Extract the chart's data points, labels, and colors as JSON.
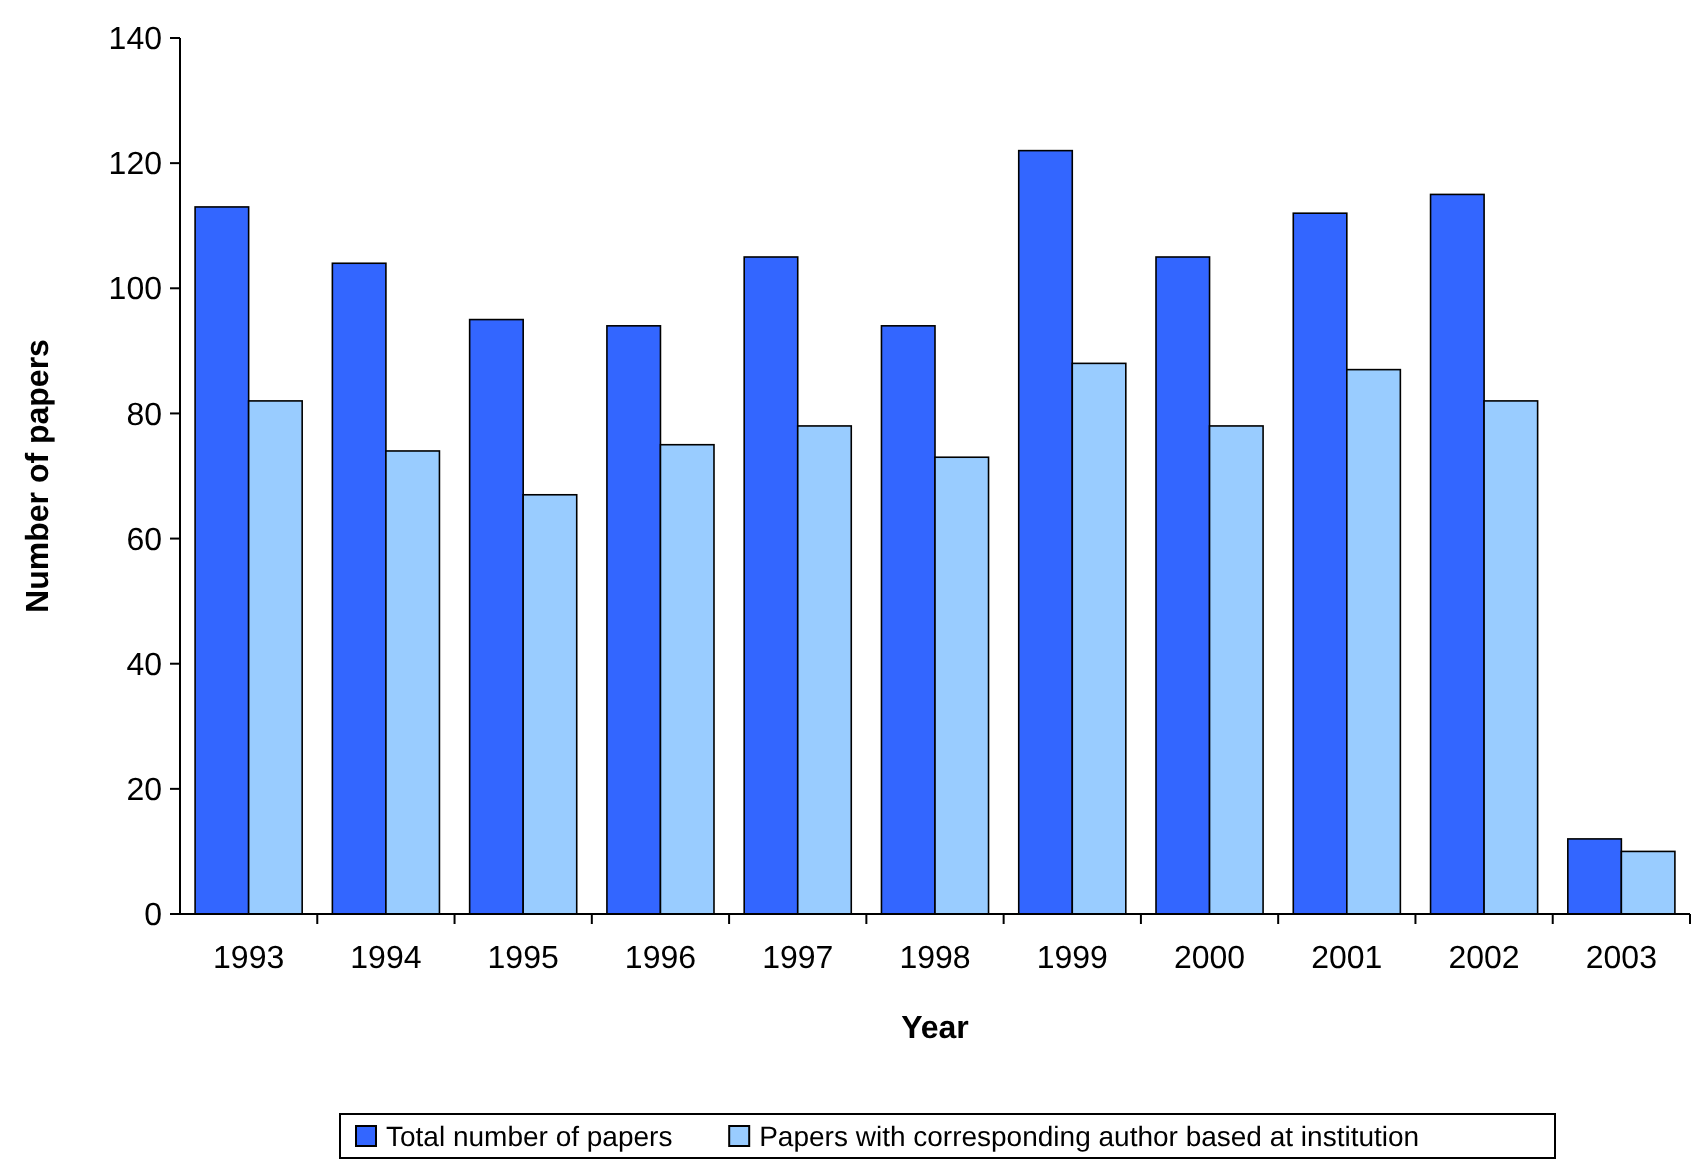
{
  "chart_data": {
    "type": "bar",
    "xlabel": "Year",
    "ylabel": "Number of papers",
    "categories": [
      "1993",
      "1994",
      "1995",
      "1996",
      "1997",
      "1998",
      "1999",
      "2000",
      "2001",
      "2002",
      "2003"
    ],
    "series": [
      {
        "name": "Total number of papers",
        "color": "#3366ff",
        "values": [
          113,
          104,
          95,
          94,
          105,
          94,
          122,
          105,
          112,
          115,
          12
        ]
      },
      {
        "name": "Papers with corresponding author based at institution",
        "color": "#99ccff",
        "values": [
          82,
          74,
          67,
          75,
          78,
          73,
          88,
          78,
          87,
          82,
          10
        ]
      }
    ],
    "ylim": [
      0,
      140
    ],
    "yticks": [
      0,
      20,
      40,
      60,
      80,
      100,
      120,
      140
    ],
    "grid": false,
    "legend": "bottom"
  }
}
